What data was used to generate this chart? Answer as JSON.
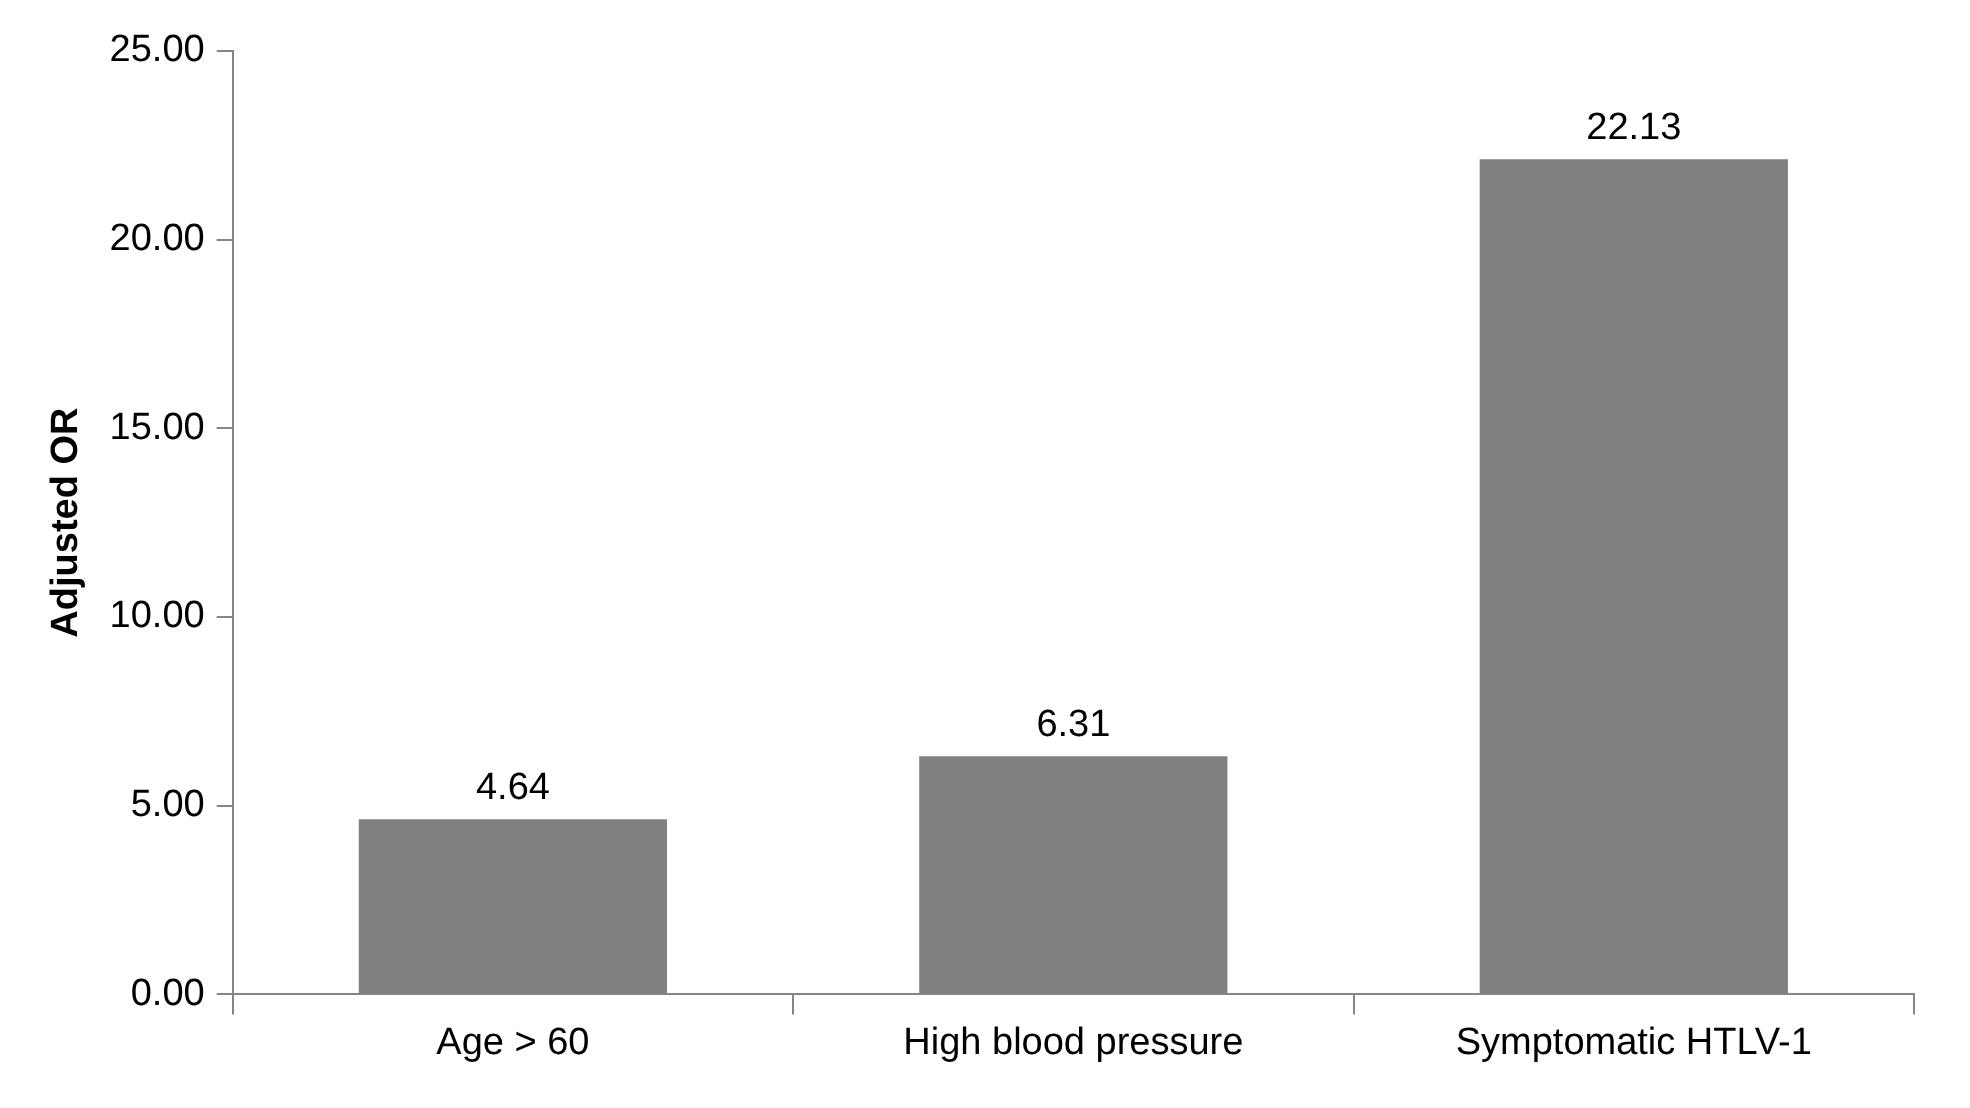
{
  "chart_data": {
    "type": "bar",
    "ylabel": "Adjusted OR",
    "categories": [
      "Age > 60",
      "High blood pressure",
      "Symptomatic HTLV-1"
    ],
    "values": [
      4.64,
      6.31,
      22.13
    ],
    "color": "#808080",
    "ylim": [
      0,
      25
    ],
    "yticks": [
      {
        "value": 0,
        "label": "0.00"
      },
      {
        "value": 5,
        "label": "5.00"
      },
      {
        "value": 10,
        "label": "10.00"
      },
      {
        "value": 15,
        "label": "15.00"
      },
      {
        "value": 20,
        "label": "20.00"
      },
      {
        "value": 25,
        "label": "25.00"
      }
    ],
    "grid": false,
    "data_labels": true
  }
}
